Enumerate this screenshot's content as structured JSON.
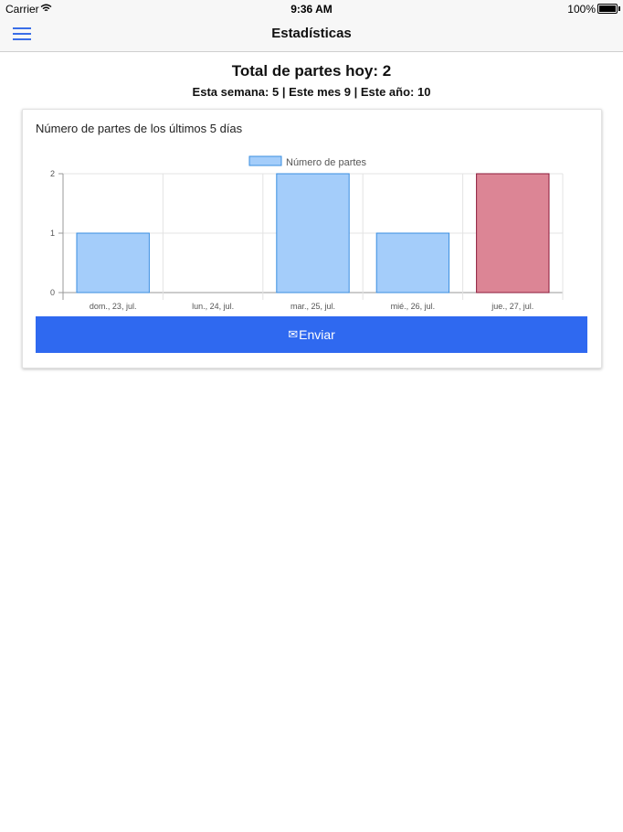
{
  "status_bar": {
    "carrier": "Carrier",
    "time": "9:36 AM",
    "battery": "100%"
  },
  "nav": {
    "title": "Estadísticas"
  },
  "summary": {
    "today": "Total de partes hoy: 2",
    "periods": "Esta semana: 5 | Este mes 9 | Este año: 10"
  },
  "card": {
    "title": "Número de partes de los últimos 5 días"
  },
  "send_button": {
    "label": "Enviar",
    "icon": "mail-icon"
  },
  "colors": {
    "accent": "#2f69f0",
    "bar": "#a4cdfa",
    "bar_border": "#3a8ee0",
    "bar_highlight": "#dc8595",
    "bar_highlight_border": "#8b1a3a"
  },
  "chart_data": {
    "type": "bar",
    "title": "",
    "categories": [
      "dom., 23, jul.",
      "lun., 24, jul.",
      "mar., 25, jul.",
      "mié., 26, jul.",
      "jue., 27, jul."
    ],
    "series": [
      {
        "name": "Número de partes",
        "values": [
          1,
          0,
          2,
          1,
          2
        ]
      }
    ],
    "highlight_index": 4,
    "y_ticks": [
      "0",
      "1",
      "2"
    ],
    "ylim": [
      0,
      2
    ],
    "grid": true,
    "legend": "top"
  }
}
